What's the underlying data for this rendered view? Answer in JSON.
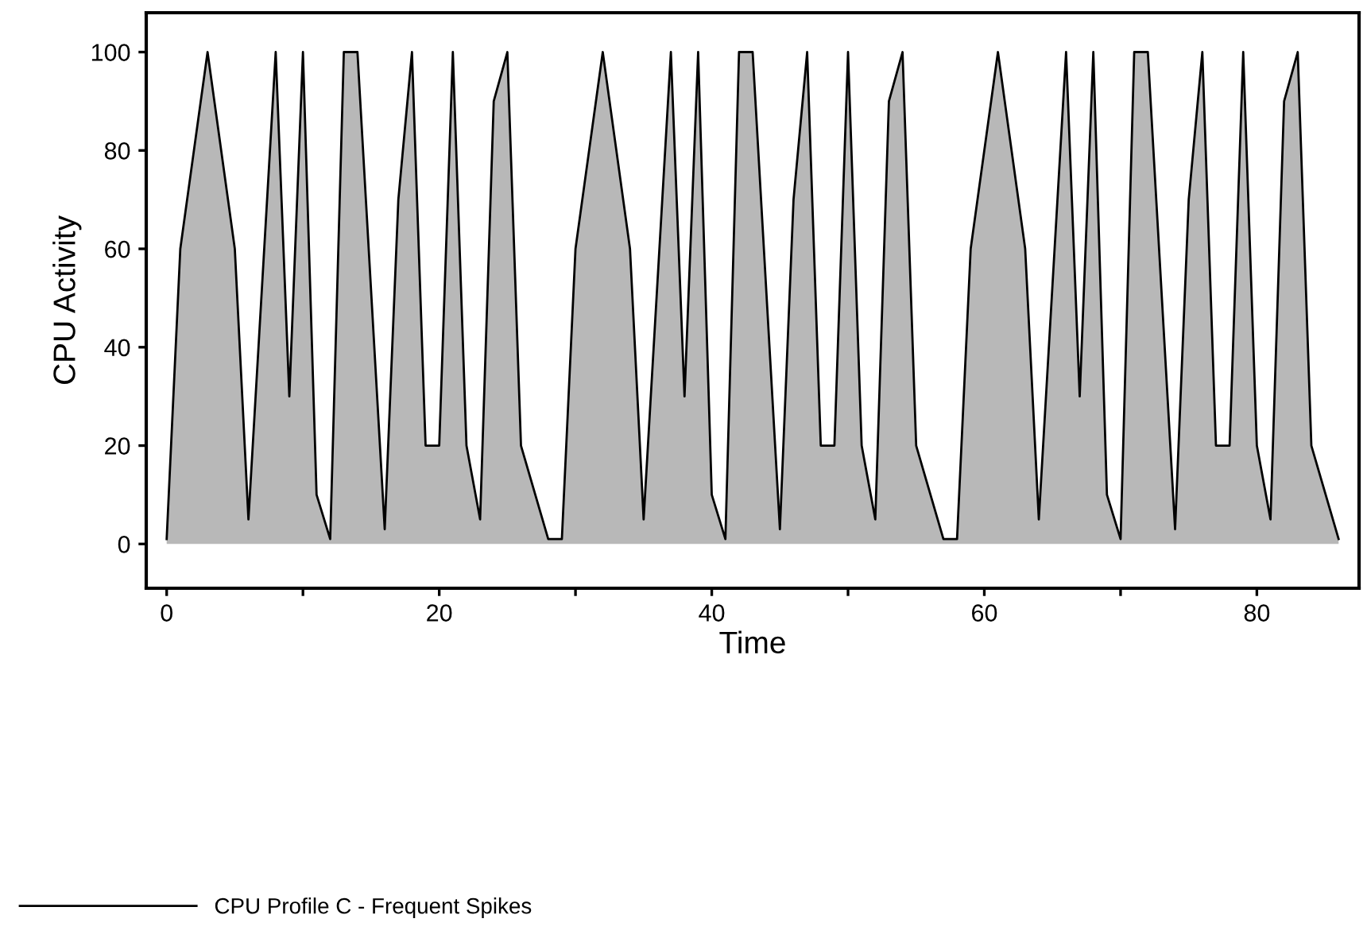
{
  "chart_data": {
    "type": "area",
    "xlabel": "Time",
    "ylabel": "CPU Activity",
    "xlim": [
      -1.5,
      87.5
    ],
    "ylim": [
      -9,
      108
    ],
    "xticks": [
      0,
      {
        "value": 10,
        "label": null
      },
      20,
      {
        "value": 30,
        "label": null
      },
      40,
      {
        "value": 50,
        "label": null
      },
      60,
      {
        "value": 70,
        "label": null
      },
      80
    ],
    "yticks": [
      0,
      20,
      40,
      60,
      80,
      100
    ],
    "grid": false,
    "legend": "bottom left",
    "series": [
      {
        "name": "CPU Profile C - Frequent Spikes",
        "color": "#b8b8b8",
        "x": [
          0,
          1,
          3,
          5,
          6,
          8,
          9,
          10,
          11,
          12,
          13,
          14,
          16,
          17,
          18,
          19,
          20,
          21,
          22,
          23,
          24,
          25,
          26,
          28,
          29,
          30,
          32,
          34,
          35,
          37,
          38,
          39,
          40,
          41,
          42,
          43,
          45,
          46,
          47,
          48,
          49,
          50,
          51,
          52,
          53,
          54,
          55,
          57,
          58,
          59,
          61,
          63,
          64,
          66,
          67,
          68,
          69,
          70,
          71,
          72,
          74,
          75,
          76,
          77,
          78,
          79,
          80,
          81,
          82,
          83,
          84,
          86
        ],
        "values": [
          1,
          60,
          100,
          60,
          5,
          100,
          30,
          100,
          10,
          1,
          100,
          100,
          3,
          70,
          100,
          20,
          20,
          100,
          20,
          5,
          90,
          100,
          20,
          1,
          1,
          60,
          100,
          60,
          5,
          100,
          30,
          100,
          10,
          1,
          100,
          100,
          3,
          70,
          100,
          20,
          20,
          100,
          20,
          5,
          90,
          100,
          20,
          1,
          1,
          60,
          100,
          60,
          5,
          100,
          30,
          100,
          10,
          1,
          100,
          100,
          3,
          70,
          100,
          20,
          20,
          100,
          20,
          5,
          90,
          100,
          20,
          1
        ]
      }
    ]
  }
}
